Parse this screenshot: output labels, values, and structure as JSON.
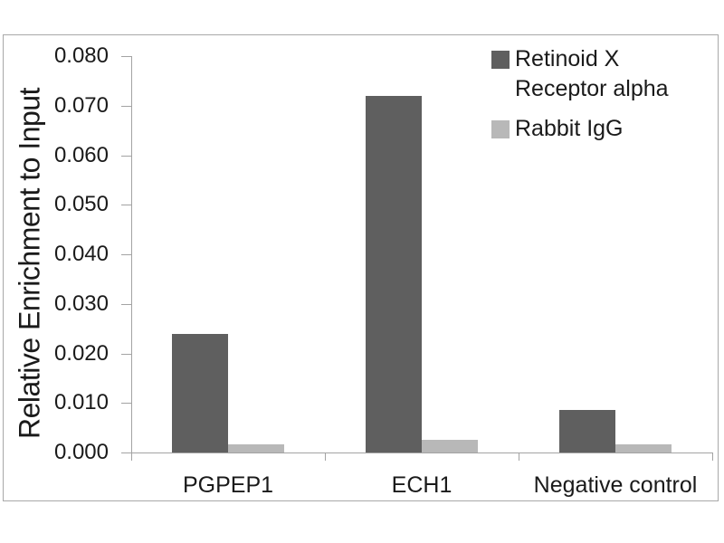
{
  "chart_data": {
    "type": "bar",
    "title": "",
    "categories": [
      "PGPEP1",
      "ECH1",
      "Negative control"
    ],
    "series": [
      {
        "name": "Retinoid X Receptor alpha",
        "color": "#5f5f5f",
        "values": [
          0.024,
          0.072,
          0.0086
        ]
      },
      {
        "name": "Rabbit IgG",
        "color": "#b8b8b8",
        "values": [
          0.0017,
          0.0026,
          0.0016
        ]
      }
    ],
    "xlabel": "",
    "ylabel": "Relative Enrichment to Input",
    "ylim": [
      0,
      0.08
    ],
    "ytick_labels": [
      "0.000",
      "0.010",
      "0.020",
      "0.030",
      "0.040",
      "0.050",
      "0.060",
      "0.070",
      "0.080"
    ],
    "grid": false,
    "legend_position": "top-right",
    "bar_style": "grouped"
  },
  "colors": {
    "series_1": "#5f5f5f",
    "series_2": "#b8b8b8",
    "axis_line": "#a3a3a3",
    "label_text": "#1a1a1a",
    "frame_border": "#a8a8a8",
    "background": "#ffffff"
  }
}
